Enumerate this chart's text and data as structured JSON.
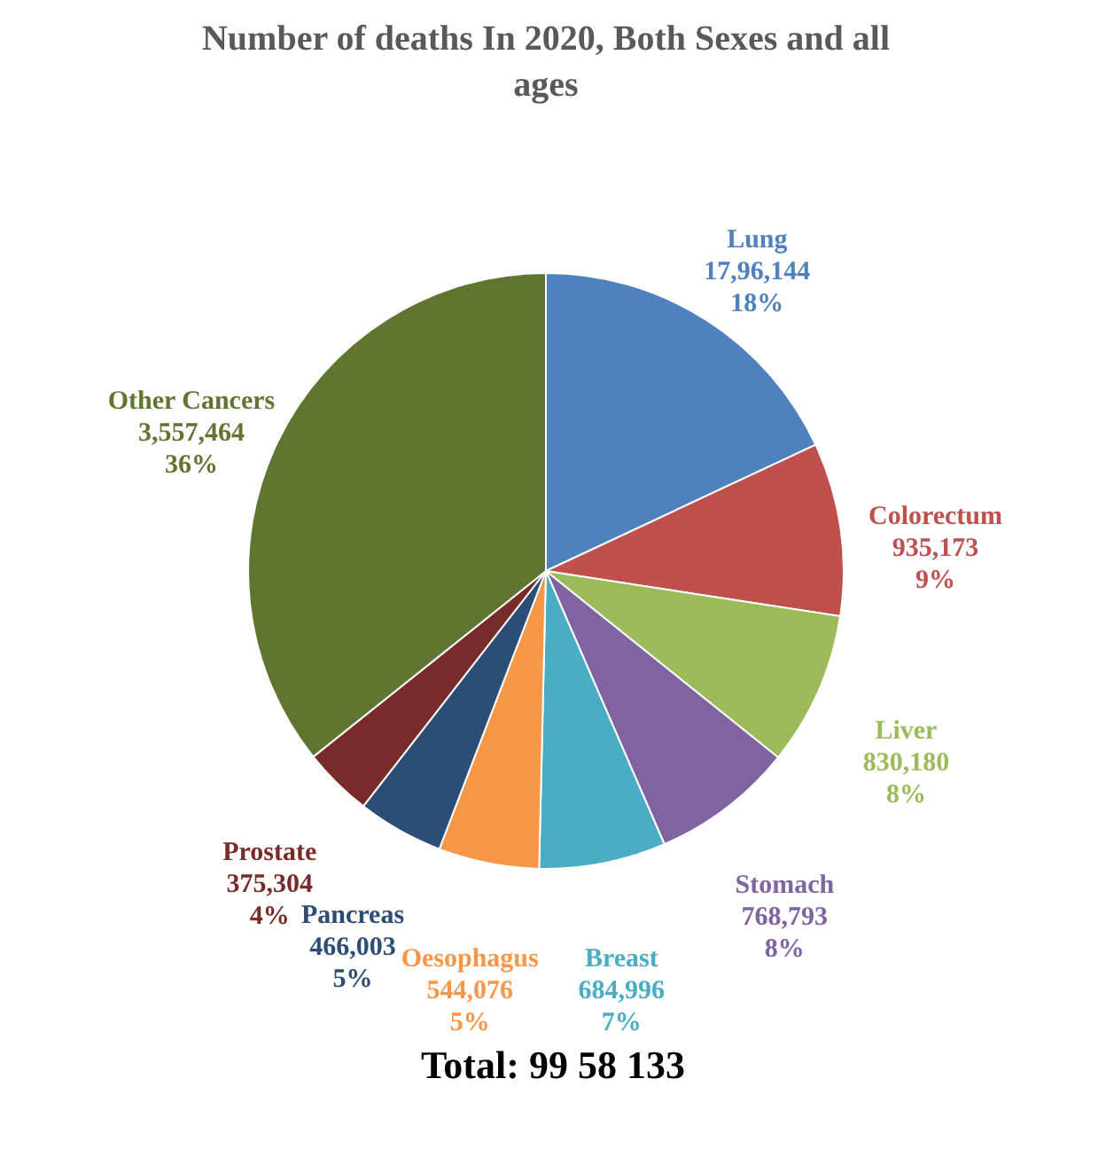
{
  "chart_data": {
    "type": "pie",
    "title": "Number of deaths In 2020, Both Sexes and all ages",
    "categories": [
      "Lung",
      "Colorectum",
      "Liver",
      "Stomach",
      "Breast",
      "Oesophagus",
      "Pancreas",
      "Prostate",
      "Other Cancers"
    ],
    "values": [
      1796144,
      935173,
      830180,
      768793,
      684996,
      544076,
      466003,
      375304,
      3557464
    ],
    "value_labels": [
      "17,96,144\n18%",
      "935,173\n9%",
      "830,180\n8%",
      "768,793\n8%",
      "684,996\n7%",
      "544,076\n5%",
      "466,003\n5%",
      "375,304\n4%",
      "3,557,464\n36%"
    ],
    "colors": [
      "#4f81bd",
      "#c0504d",
      "#9bbb59",
      "#8064a2",
      "#4bacc6",
      "#f79646",
      "#2c4d75",
      "#772c2a",
      "#5f7530"
    ],
    "annotations": [
      "Total: 99 58 133"
    ]
  }
}
